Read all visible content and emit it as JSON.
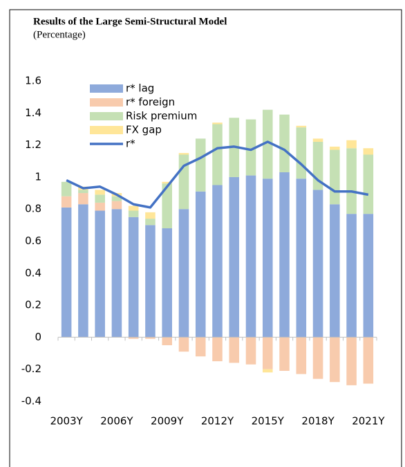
{
  "chart_data": {
    "type": "stacked-bar-line",
    "title": "Results of the Large Semi-Structural Model",
    "subtitle": "(Percentage)",
    "categories": [
      "2003Y",
      null,
      null,
      "2006Y",
      null,
      null,
      "2009Y",
      null,
      null,
      "2012Y",
      null,
      null,
      "2015Y",
      null,
      null,
      "2018Y",
      null,
      null,
      "2021Y"
    ],
    "ylim": [
      -0.4,
      1.6
    ],
    "yticks": [
      -0.4,
      -0.2,
      0,
      0.2,
      0.4,
      0.6,
      0.8,
      1,
      1.2,
      1.4,
      1.6
    ],
    "grid": false,
    "legend": "top-left",
    "series": [
      {
        "name": "r* lag",
        "type": "bar",
        "color": "#8eaadb",
        "values": [
          0.81,
          0.83,
          0.79,
          0.8,
          0.75,
          0.7,
          0.68,
          0.8,
          0.91,
          0.95,
          1.0,
          1.01,
          0.99,
          1.03,
          0.99,
          0.92,
          0.83,
          0.77,
          0.77
        ]
      },
      {
        "name": "r* foreign",
        "type": "bar",
        "color": "#f8cbad",
        "values": [
          0.07,
          0.07,
          0.05,
          0.05,
          -0.01,
          -0.01,
          -0.05,
          -0.09,
          -0.12,
          -0.15,
          -0.16,
          -0.17,
          -0.2,
          -0.21,
          -0.23,
          -0.26,
          -0.28,
          -0.3,
          -0.29
        ]
      },
      {
        "name": "Risk premium",
        "type": "bar",
        "color": "#c5e0b4",
        "values": [
          0.09,
          0.02,
          0.05,
          0.03,
          0.04,
          0.04,
          0.28,
          0.34,
          0.33,
          0.38,
          0.37,
          0.35,
          0.43,
          0.36,
          0.32,
          0.3,
          0.34,
          0.41,
          0.37
        ]
      },
      {
        "name": "FX gap",
        "type": "bar",
        "color": "#ffe699",
        "values": [
          0.0,
          0.02,
          0.03,
          0.02,
          0.03,
          0.04,
          0.01,
          0.01,
          0.0,
          0.01,
          0.0,
          0.0,
          -0.02,
          0.0,
          0.01,
          0.02,
          0.02,
          0.05,
          0.04
        ]
      },
      {
        "name": "r*",
        "type": "line",
        "color": "#4472c4",
        "values": [
          0.98,
          0.93,
          0.94,
          0.89,
          0.83,
          0.81,
          0.94,
          1.07,
          1.12,
          1.18,
          1.19,
          1.17,
          1.22,
          1.17,
          1.08,
          0.98,
          0.91,
          0.91,
          0.89
        ]
      }
    ]
  }
}
